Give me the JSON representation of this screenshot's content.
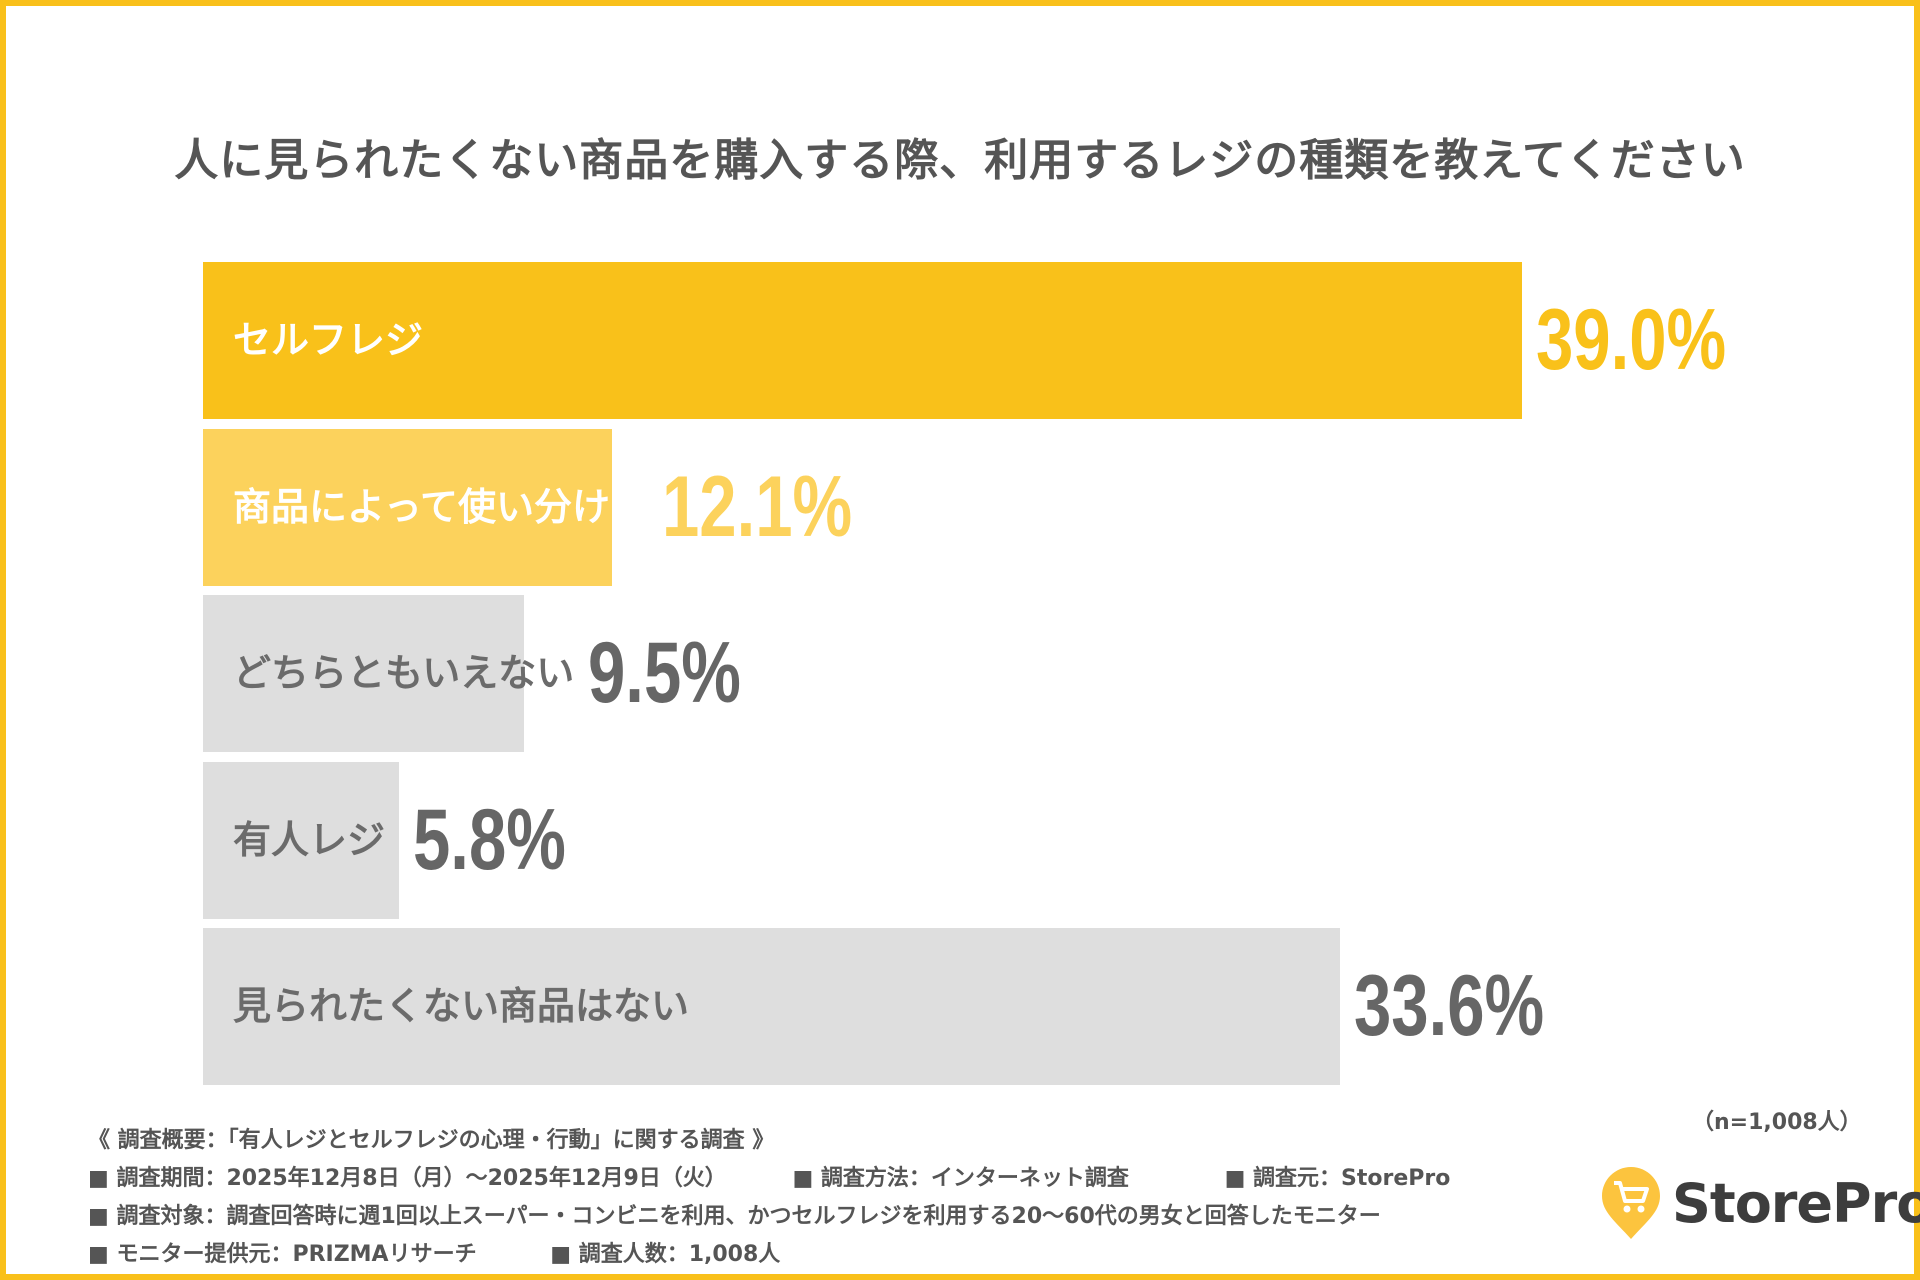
{
  "chart_data": {
    "type": "bar",
    "orientation": "horizontal",
    "title": "人に見られたくない商品を購入する際、利用するレジの種類を教えてください",
    "categories": [
      "セルフレジ",
      "商品によって使い分ける",
      "どちらともいえない",
      "有人レジ",
      "見られたくない商品はない"
    ],
    "values": [
      39.0,
      12.1,
      9.5,
      5.8,
      33.6
    ],
    "value_labels": [
      "39.0%",
      "12.1%",
      "9.5%",
      "5.8%",
      "33.6%"
    ],
    "unit": "%",
    "bar_colors": [
      "#F9C11A",
      "#FCD25C",
      "#DEDEDE",
      "#DEDEDE",
      "#DEDEDE"
    ],
    "label_colors": [
      "#FFFFFF",
      "#FFFFFF",
      "#6B6B6B",
      "#6B6B6B",
      "#6B6B6B"
    ],
    "value_colors": [
      "#F9C11A",
      "#FCD25C",
      "#666666",
      "#666666",
      "#666666"
    ],
    "grid": false,
    "sample_size": "（n=1,008人）"
  },
  "footer": {
    "heading": "《 調査概要：「有人レジとセルフレジの心理・行動」に関する調査 》",
    "period": "■ 調査期間：2025年12月8日（月）～2025年12月9日（火）",
    "method": "■ 調査方法：インターネット調査",
    "source": "■ 調査元：StorePro",
    "target": "■ 調査対象：調査回答時に週1回以上スーパー・コンビニを利用、かつセルフレジを利用する20～60代の男女と回答したモニター",
    "provider": "■ モニター提供元：PRIZMAリサーチ",
    "count": "■ 調査人数：1,008人"
  },
  "logo": {
    "text": "StorePro",
    "icon": "cart-pin-icon",
    "color": "#FCC43E"
  },
  "colors": {
    "border": "#F9C01A"
  }
}
